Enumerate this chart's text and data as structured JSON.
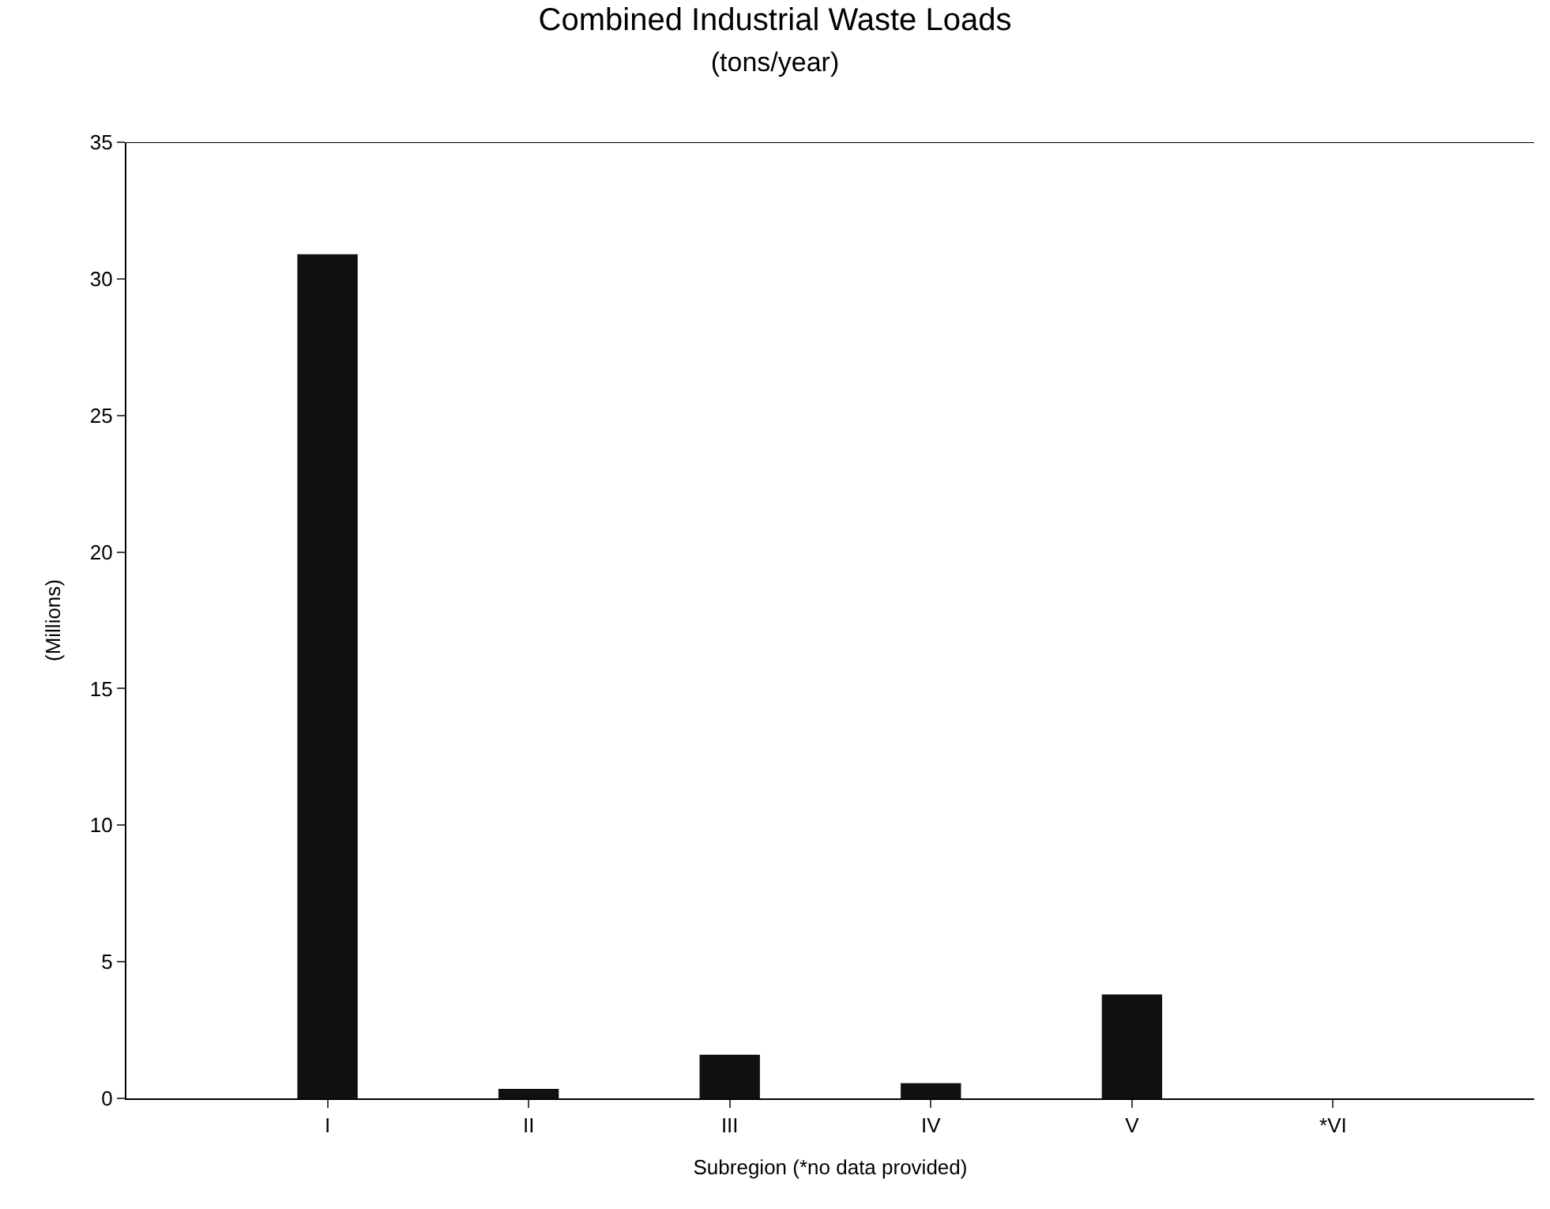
{
  "chart_data": {
    "type": "bar",
    "title": "Combined Industrial Waste Loads",
    "subtitle": "(tons/year)",
    "xlabel": "Subregion (*no data provided)",
    "ylabel": "(Millions)",
    "categories": [
      "I",
      "II",
      "III",
      "IV",
      "V",
      "*VI"
    ],
    "values": [
      30.9,
      0.35,
      1.6,
      0.56,
      3.8,
      null
    ],
    "color": "#111111",
    "ylim": [
      0,
      35
    ],
    "yticks": [
      0,
      5,
      10,
      15,
      20,
      25,
      30,
      35
    ],
    "grid": false
  }
}
